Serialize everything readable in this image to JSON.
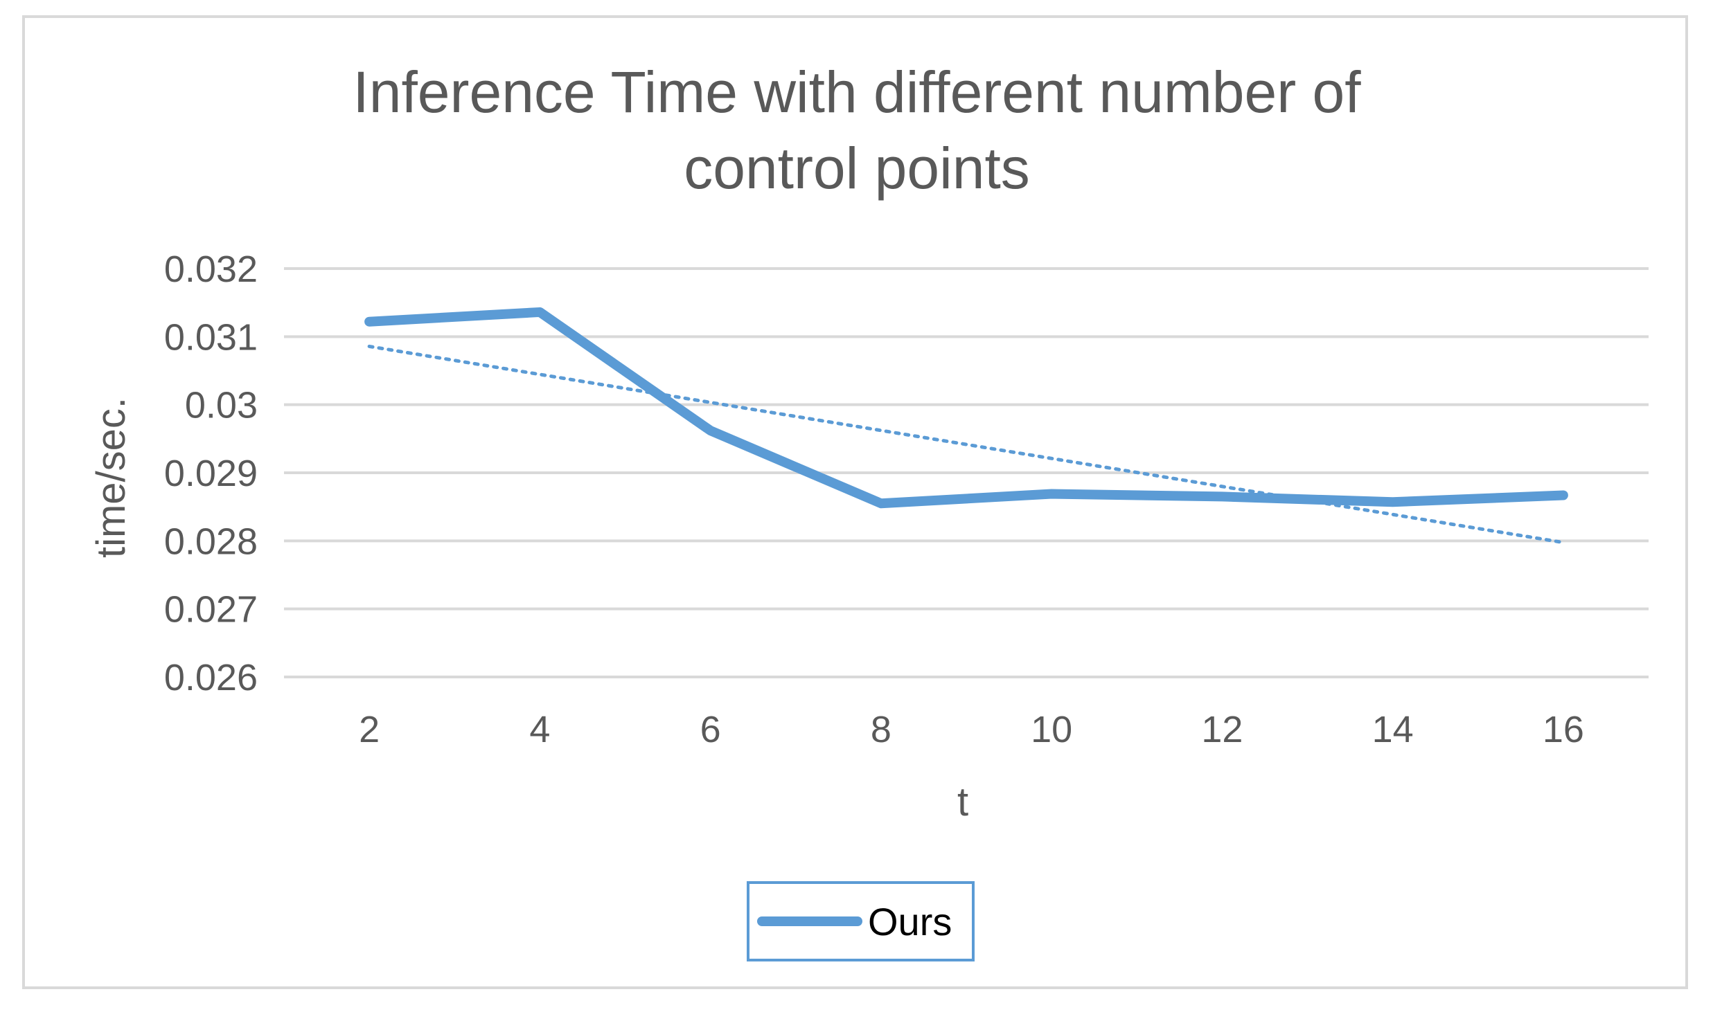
{
  "chart_data": {
    "type": "line",
    "title_lines": [
      "Inference Time with different number of",
      "control points"
    ],
    "xlabel": "t",
    "ylabel": "time/sec.",
    "categories": [
      "2",
      "4",
      "6",
      "8",
      "10",
      "12",
      "14",
      "16"
    ],
    "y_ticks": [
      "0.032",
      "0.031",
      "0.03",
      "0.029",
      "0.028",
      "0.027",
      "0.026"
    ],
    "ylim": [
      0.026,
      0.032
    ],
    "grid": true,
    "legend_position": "bottom",
    "series": [
      {
        "name": "Ours",
        "values": [
          0.03122,
          0.03136,
          0.02962,
          0.02855,
          0.02869,
          0.02865,
          0.02857,
          0.02867
        ],
        "color": "#5b9bd5"
      }
    ],
    "trendline": {
      "style": "dotted",
      "type": "linear",
      "series": "Ours",
      "color": "#5b9bd5"
    }
  }
}
